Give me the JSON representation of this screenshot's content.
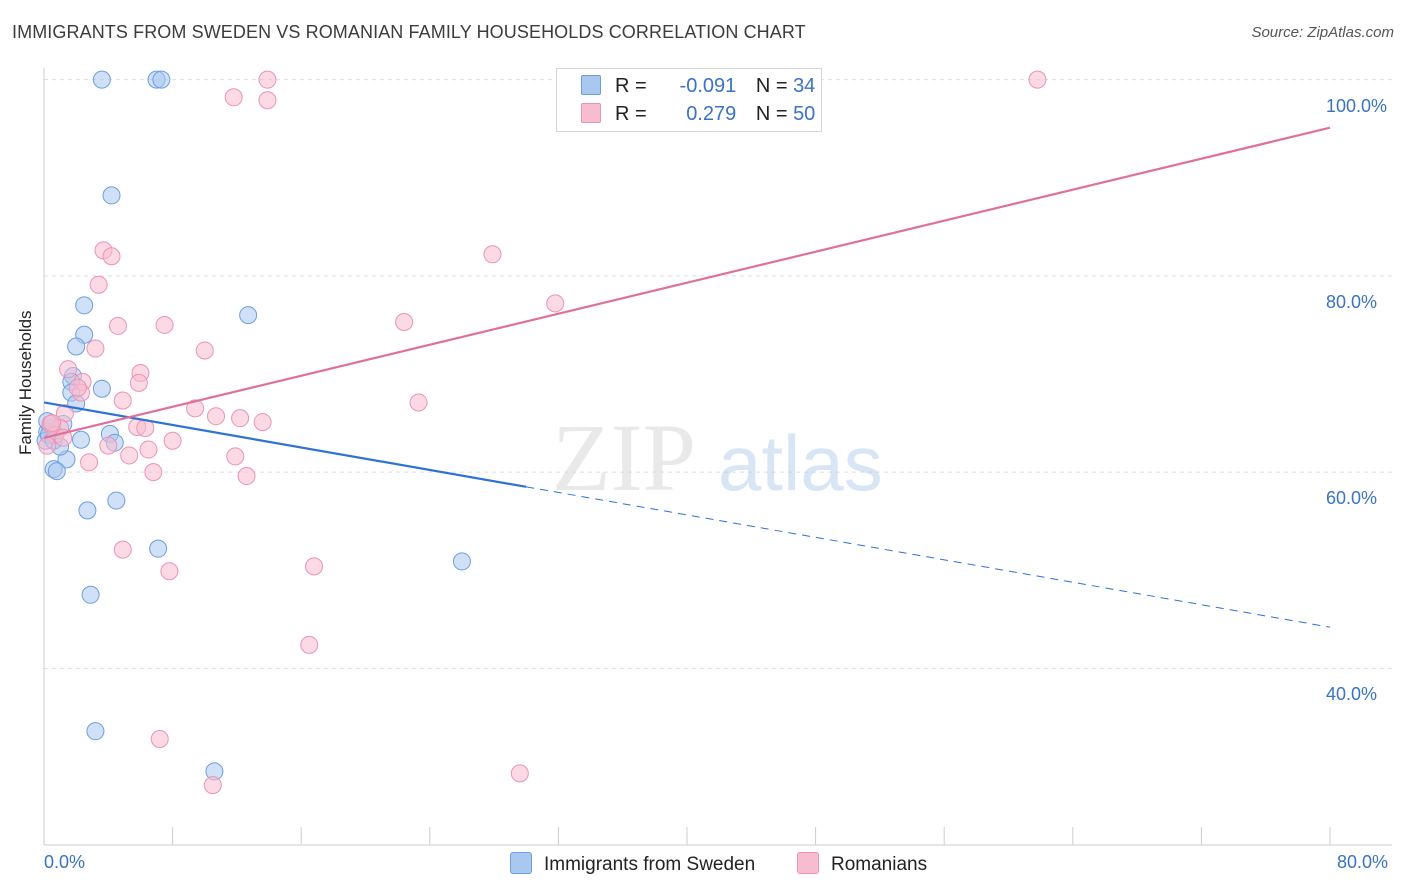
{
  "title": "IMMIGRANTS FROM SWEDEN VS ROMANIAN FAMILY HOUSEHOLDS CORRELATION CHART",
  "source": "Source: ZipAtlas.com",
  "colors": {
    "sweden_fill": "#a9c8f0",
    "sweden_stroke": "#6d9ee0",
    "sweden_line": "#2f72d6",
    "romanian_fill": "#f8bcd0",
    "romanian_stroke": "#ec93b2",
    "romanian_line": "#e0709a",
    "accent_text": "#3a72c8"
  },
  "legend": {
    "rows": [
      {
        "r_label": "R =",
        "r_value": "-0.091",
        "n_label": "N =",
        "n_value": "34"
      },
      {
        "r_label": "R =",
        "r_value": "0.279",
        "n_label": "N =",
        "n_value": "50"
      }
    ]
  },
  "bottom_legend": {
    "sweden": "Immigrants from Sweden",
    "romanian": "Romanians"
  },
  "watermark": {
    "zip": "ZIP",
    "atlas": "atlas"
  },
  "chart_data": {
    "type": "scatter",
    "title": "IMMIGRANTS FROM SWEDEN VS ROMANIAN FAMILY HOUSEHOLDS CORRELATION CHART",
    "xlabel": "",
    "ylabel": "Family Households",
    "xlim": [
      0,
      80
    ],
    "ylim": [
      22,
      102
    ],
    "x_tick_labels": [
      "0.0%",
      "80.0%"
    ],
    "y_ticks": [
      {
        "value": 100,
        "label": "100.0%"
      },
      {
        "value": 80,
        "label": "80.0%"
      },
      {
        "value": 60,
        "label": "60.0%"
      },
      {
        "value": 40,
        "label": "40.0%"
      }
    ],
    "series": [
      {
        "name": "Immigrants from Sweden",
        "r": -0.091,
        "n": 34,
        "trend": {
          "x0": 0,
          "y0": 67.1,
          "x1": 30,
          "y1": 58.5,
          "dash_to_x": 80,
          "dash_to_y": 44.2
        },
        "points": [
          [
            3.6,
            100
          ],
          [
            7.0,
            100
          ],
          [
            7.3,
            100
          ],
          [
            4.2,
            88.2
          ],
          [
            2.5,
            77
          ],
          [
            12.7,
            76
          ],
          [
            2.5,
            74
          ],
          [
            2.0,
            72.8
          ],
          [
            1.8,
            69.8
          ],
          [
            1.7,
            69.2
          ],
          [
            3.6,
            68.5
          ],
          [
            1.7,
            68.1
          ],
          [
            2.0,
            67
          ],
          [
            1.2,
            64.9
          ],
          [
            0.4,
            64.5
          ],
          [
            0.2,
            64.1
          ],
          [
            0.1,
            63.2
          ],
          [
            4.1,
            63.9
          ],
          [
            2.3,
            63.3
          ],
          [
            4.4,
            63
          ],
          [
            1.4,
            61.3
          ],
          [
            0.6,
            60.3
          ],
          [
            0.8,
            60.1
          ],
          [
            4.5,
            57.1
          ],
          [
            2.7,
            56.1
          ],
          [
            7.1,
            52.2
          ],
          [
            26.0,
            50.9
          ],
          [
            2.9,
            47.5
          ],
          [
            3.2,
            33.6
          ],
          [
            10.6,
            29.5
          ],
          [
            0.3,
            63.8
          ],
          [
            0.6,
            63.2
          ],
          [
            0.2,
            65.2
          ],
          [
            1.0,
            62.6
          ]
        ]
      },
      {
        "name": "Romanians",
        "r": 0.279,
        "n": 50,
        "trend": {
          "x0": 0,
          "y0": 63.5,
          "x1": 80,
          "y1": 95.1
        },
        "points": [
          [
            13.9,
            100
          ],
          [
            61.8,
            100
          ],
          [
            11.8,
            98.2
          ],
          [
            13.9,
            97.9
          ],
          [
            3.7,
            82.6
          ],
          [
            4.2,
            82
          ],
          [
            27.9,
            82.2
          ],
          [
            3.4,
            79.1
          ],
          [
            31.8,
            77.2
          ],
          [
            4.6,
            74.9
          ],
          [
            7.5,
            75
          ],
          [
            22.4,
            75.3
          ],
          [
            3.2,
            72.6
          ],
          [
            10.0,
            72.4
          ],
          [
            1.5,
            70.5
          ],
          [
            6.0,
            70.1
          ],
          [
            2.4,
            69.2
          ],
          [
            5.9,
            69.1
          ],
          [
            2.3,
            68.1
          ],
          [
            2.1,
            68.6
          ],
          [
            4.9,
            67.3
          ],
          [
            23.3,
            67.1
          ],
          [
            9.4,
            66.5
          ],
          [
            1.3,
            66
          ],
          [
            10.7,
            65.7
          ],
          [
            12.2,
            65.5
          ],
          [
            13.6,
            65.1
          ],
          [
            5.8,
            64.6
          ],
          [
            6.3,
            64.5
          ],
          [
            1.0,
            64.5
          ],
          [
            0.4,
            64.9
          ],
          [
            0.7,
            63.8
          ],
          [
            1.2,
            63.5
          ],
          [
            8.0,
            63.2
          ],
          [
            4.0,
            62.7
          ],
          [
            6.5,
            62.3
          ],
          [
            0.2,
            62.7
          ],
          [
            5.3,
            61.7
          ],
          [
            11.9,
            61.6
          ],
          [
            2.8,
            61
          ],
          [
            6.8,
            60
          ],
          [
            12.6,
            59.6
          ],
          [
            4.9,
            52.1
          ],
          [
            7.8,
            49.9
          ],
          [
            16.8,
            50.4
          ],
          [
            16.5,
            42.4
          ],
          [
            7.2,
            32.8
          ],
          [
            10.5,
            28.1
          ],
          [
            29.6,
            29.3
          ],
          [
            0.5,
            65.0
          ]
        ]
      }
    ]
  }
}
